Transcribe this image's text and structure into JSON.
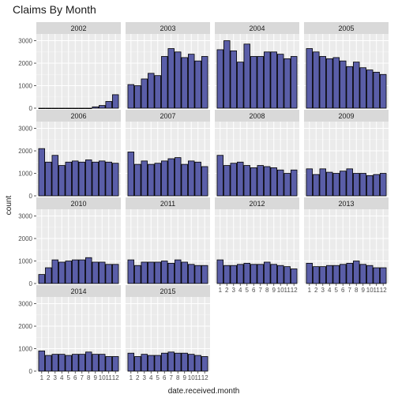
{
  "chart_data": {
    "type": "bar",
    "title": "Claims By Month",
    "xlabel": "date.received.month",
    "ylabel": "count",
    "categories": [
      "1",
      "2",
      "3",
      "4",
      "5",
      "6",
      "7",
      "8",
      "9",
      "10",
      "11",
      "12"
    ],
    "yticks": [
      0,
      1000,
      2000,
      3000
    ],
    "ylim": [
      0,
      3300
    ],
    "grid": true,
    "facets": [
      {
        "label": "2002",
        "values": [
          0,
          0,
          0,
          0,
          0,
          0,
          0,
          0,
          60,
          120,
          300,
          600
        ]
      },
      {
        "label": "2003",
        "values": [
          1050,
          1000,
          1300,
          1550,
          1450,
          2300,
          2650,
          2500,
          2250,
          2400,
          2100,
          2300
        ]
      },
      {
        "label": "2004",
        "values": [
          2600,
          3000,
          2550,
          2050,
          2850,
          2300,
          2300,
          2500,
          2500,
          2400,
          2200,
          2300
        ]
      },
      {
        "label": "2005",
        "values": [
          2650,
          2500,
          2300,
          2200,
          2250,
          2100,
          1850,
          2050,
          1800,
          1700,
          1600,
          1500
        ]
      },
      {
        "label": "2006",
        "values": [
          2100,
          1500,
          1800,
          1350,
          1500,
          1550,
          1500,
          1600,
          1500,
          1550,
          1500,
          1450
        ]
      },
      {
        "label": "2007",
        "values": [
          1950,
          1400,
          1550,
          1400,
          1450,
          1550,
          1650,
          1700,
          1400,
          1550,
          1500,
          1300
        ]
      },
      {
        "label": "2008",
        "values": [
          1800,
          1350,
          1450,
          1500,
          1350,
          1250,
          1350,
          1300,
          1250,
          1150,
          1000,
          1150
        ]
      },
      {
        "label": "2009",
        "values": [
          1200,
          950,
          1200,
          1050,
          1000,
          1100,
          1200,
          1000,
          1000,
          900,
          950,
          1000
        ]
      },
      {
        "label": "2010",
        "values": [
          400,
          700,
          1050,
          950,
          1000,
          1050,
          1050,
          1150,
          950,
          950,
          850,
          850
        ]
      },
      {
        "label": "2011",
        "values": [
          1050,
          800,
          950,
          950,
          950,
          1000,
          900,
          1050,
          950,
          850,
          800,
          800
        ]
      },
      {
        "label": "2012",
        "values": [
          1050,
          800,
          800,
          850,
          900,
          850,
          850,
          950,
          850,
          800,
          750,
          650
        ]
      },
      {
        "label": "2013",
        "values": [
          900,
          750,
          750,
          800,
          800,
          850,
          900,
          1000,
          850,
          800,
          700,
          700
        ]
      },
      {
        "label": "2014",
        "values": [
          900,
          700,
          750,
          750,
          700,
          750,
          750,
          850,
          750,
          750,
          650,
          650
        ]
      },
      {
        "label": "2015",
        "values": [
          800,
          650,
          750,
          700,
          700,
          800,
          850,
          800,
          800,
          750,
          700,
          650
        ]
      }
    ],
    "bar_fill": "#5a5ea8",
    "bar_stroke": "#000000",
    "panel_bg": "#ebebeb",
    "strip_bg": "#d9d9d9"
  }
}
